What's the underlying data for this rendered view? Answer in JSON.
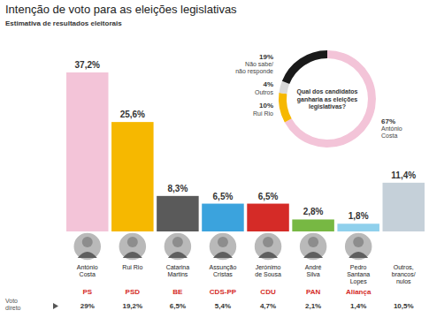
{
  "chart_data": [
    {
      "type": "bar",
      "title": "Intenção de voto para as eleições legislativas",
      "subtitle": "Estimativa de resultados eleitorais",
      "categories": [
        "António Costa",
        "Rui Rio",
        "Catarina Martins",
        "Assunção Cristas",
        "Jerónimo de Sousa",
        "André Silva",
        "Pedro Santana Lopes",
        "Outros, brancos/ nulos"
      ],
      "parties": [
        "PS",
        "PSD",
        "BE",
        "CDS-PP",
        "CDU",
        "PAN",
        "Aliança",
        null
      ],
      "values": [
        37.2,
        25.6,
        8.3,
        6.5,
        6.5,
        2.8,
        1.8,
        11.4
      ],
      "value_labels": [
        "37,2%",
        "25,6%",
        "8,3%",
        "6,5%",
        "6,5%",
        "2,8%",
        "1,8%",
        "11,4%"
      ],
      "colors": [
        "#f3c4d8",
        "#f6b800",
        "#5a5a5a",
        "#3ba3dd",
        "#d52b27",
        "#77b843",
        "#8fd0ec",
        "#c5d0d9"
      ],
      "data_labels": true,
      "direct_vote": {
        "label": "Voto direto",
        "values": [
          29,
          19.2,
          6.5,
          5.4,
          4.7,
          2.1,
          1.4,
          10.5
        ],
        "value_labels": [
          "29%",
          "19,2%",
          "6,5%",
          "5,4%",
          "4,7%",
          "2,1%",
          "1,4%",
          "10,5%"
        ]
      }
    },
    {
      "type": "pie",
      "title": "Qual dos candidatos ganharia as eleições legislativas?",
      "categories": [
        "António Costa",
        "Rui Rio",
        "Outros",
        "Não sabe/ não responde"
      ],
      "values": [
        67,
        10,
        4,
        19
      ],
      "value_labels": [
        "67%",
        "10%",
        "4%",
        "19%"
      ],
      "colors": [
        "#f3c4d8",
        "#f6b800",
        "#d9d9d9",
        "#1a1a1a"
      ],
      "data_labels": true
    }
  ]
}
